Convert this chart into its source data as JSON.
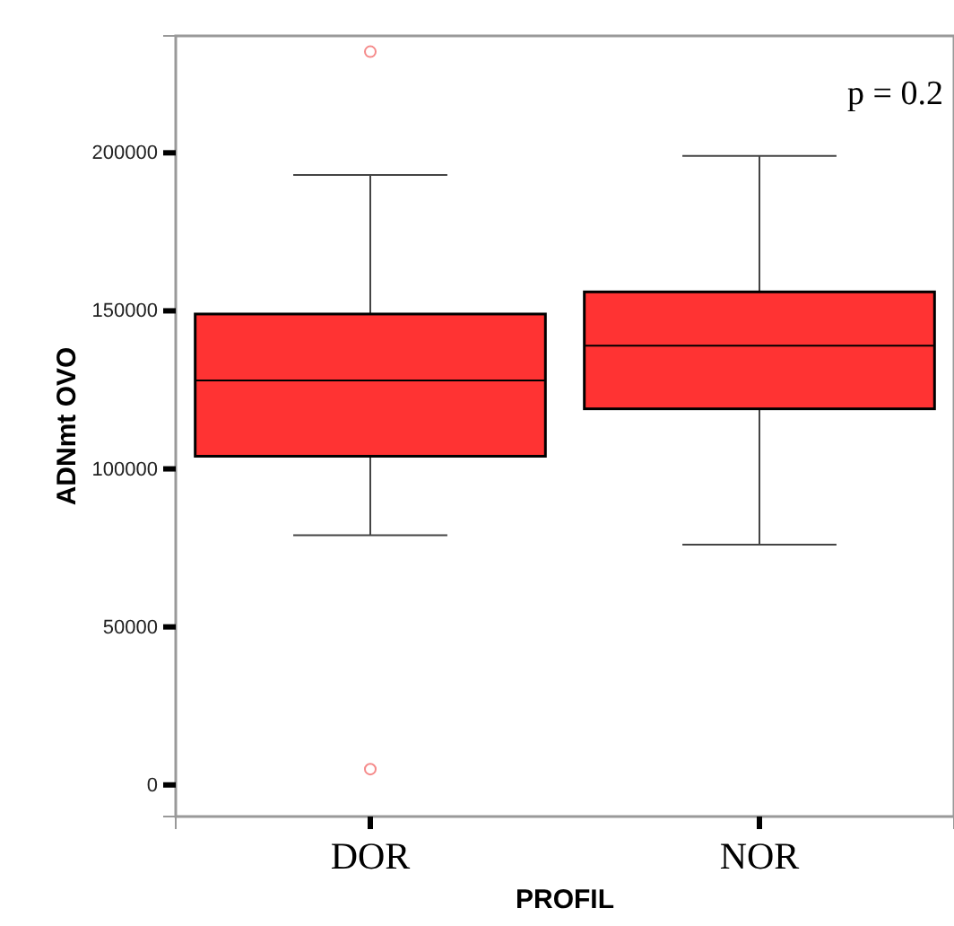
{
  "chart_data": {
    "type": "box",
    "xlabel": "PROFIL",
    "ylabel": "ADNmt OVO",
    "categories": [
      "DOR",
      "NOR"
    ],
    "color": "#ff3333",
    "ylim": [
      -10000,
      237000
    ],
    "yticks": [
      0,
      50000,
      100000,
      150000,
      200000
    ],
    "grid": false,
    "annotations": [
      "p = 0.2"
    ],
    "boxes": [
      {
        "low": 79000,
        "q1": 104000,
        "median": 128000,
        "q3": 149000,
        "high": 193000,
        "outliers": [
          5000,
          232000
        ]
      },
      {
        "low": 76000,
        "q1": 119000,
        "median": 139000,
        "q3": 156000,
        "high": 199000
      }
    ]
  }
}
